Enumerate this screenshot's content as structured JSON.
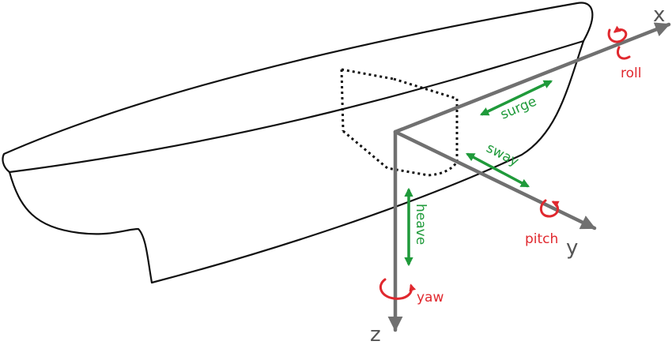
{
  "axes": {
    "x": {
      "label": "x",
      "rotation_label": "roll"
    },
    "y": {
      "label": "y",
      "rotation_label": "pitch"
    },
    "z": {
      "label": "z",
      "rotation_label": "yaw"
    }
  },
  "translations": {
    "surge": "surge",
    "sway": "sway",
    "heave": "heave"
  },
  "colors": {
    "hull": "#111111",
    "axis": "#707070",
    "translation": "#1f9a3a",
    "rotation": "#e0282e",
    "axis_text": "#555555"
  }
}
